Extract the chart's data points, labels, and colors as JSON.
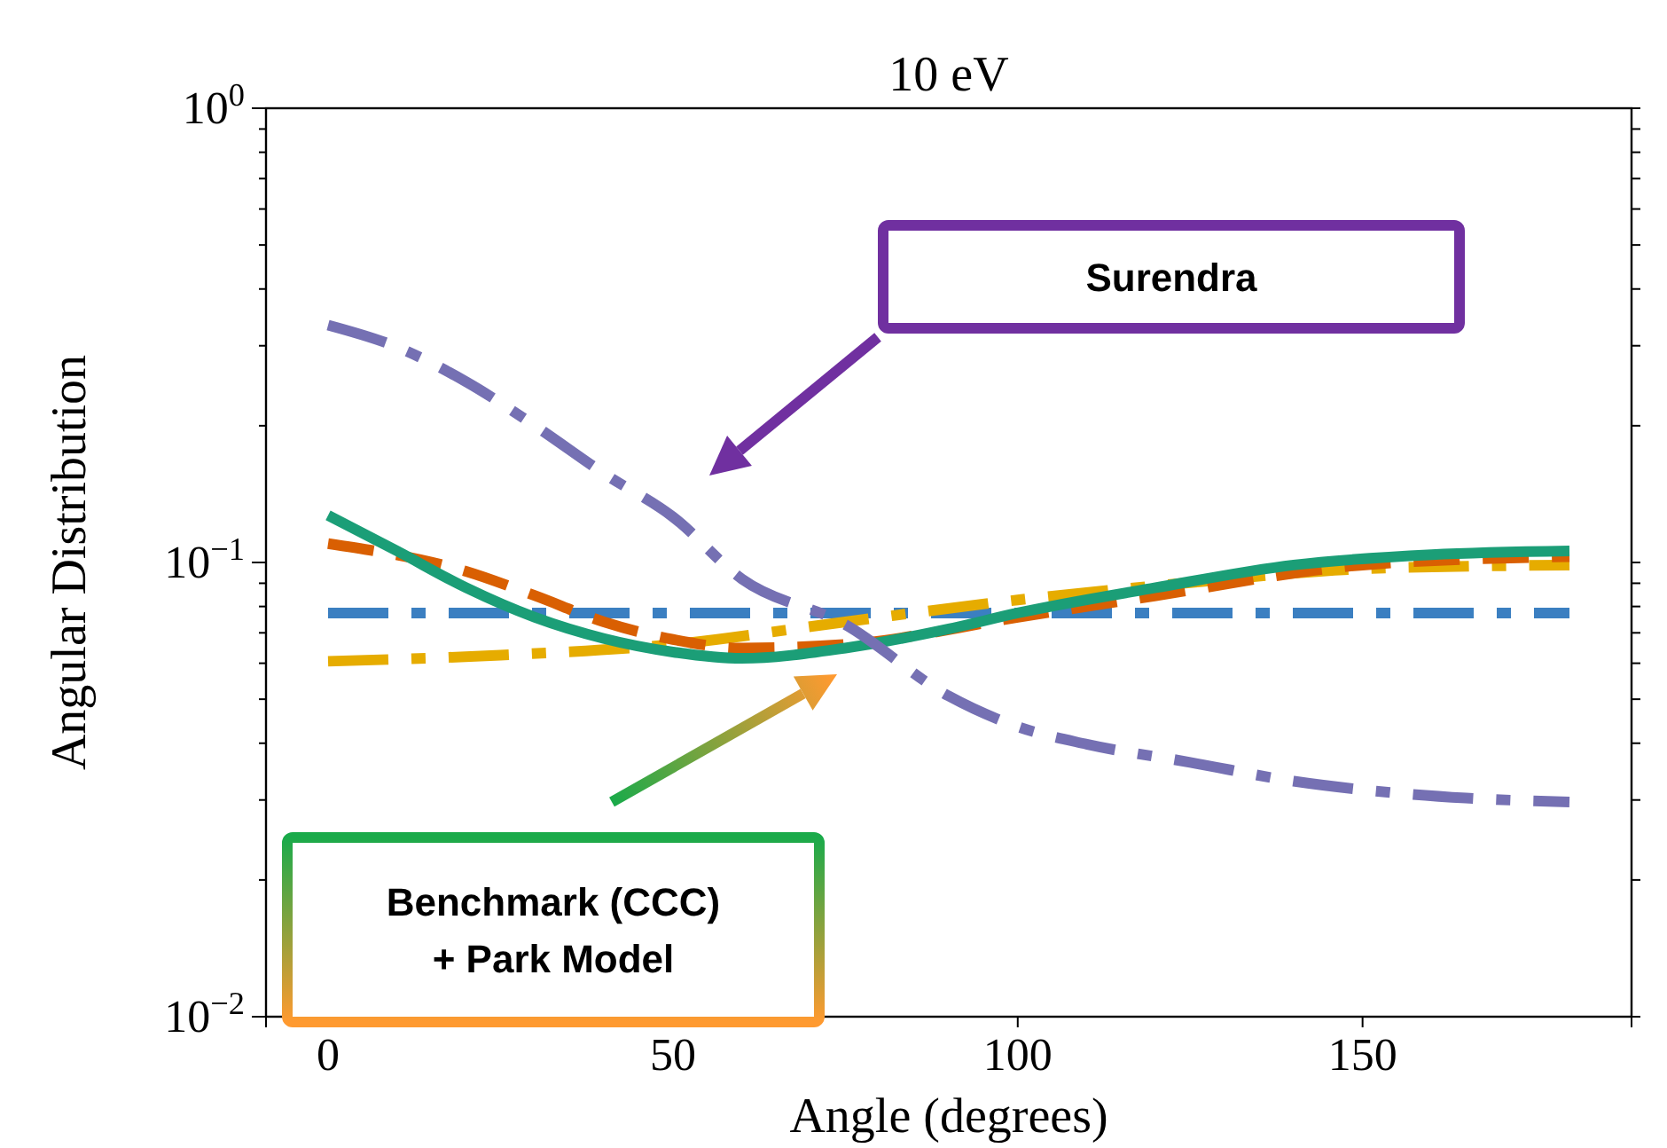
{
  "chart_data": {
    "type": "line",
    "title": "10 eV",
    "xlabel": "Angle (degrees)",
    "ylabel": "Angular Distribution",
    "log": "y",
    "grid": false,
    "xlim": [
      -9,
      189
    ],
    "xticks": [
      0,
      50,
      100,
      150
    ],
    "ylim": [
      0.01,
      1
    ],
    "yticks": [
      {
        "value": 0.01,
        "label": "10$^{−2}$"
      },
      {
        "value": 0.02,
        "label": null
      },
      {
        "value": 0.03,
        "label": null
      },
      {
        "value": 0.04,
        "label": null
      },
      {
        "value": 0.05,
        "label": null
      },
      {
        "value": 0.06,
        "label": null
      },
      {
        "value": 0.07,
        "label": null
      },
      {
        "value": 0.08,
        "label": null
      },
      {
        "value": 0.09,
        "label": null
      },
      {
        "value": 0.1,
        "label": "10$^{−1}$"
      },
      {
        "value": 0.2,
        "label": null
      },
      {
        "value": 0.3,
        "label": null
      },
      {
        "value": 0.4,
        "label": null
      },
      {
        "value": 0.5,
        "label": null
      },
      {
        "value": 0.6,
        "label": null
      },
      {
        "value": 0.7,
        "label": null
      },
      {
        "value": 0.8,
        "label": null
      },
      {
        "value": 0.9,
        "label": null
      },
      {
        "value": 1,
        "label": "10$^{0}$"
      }
    ],
    "series": [
      {
        "color": "#3b7fc1",
        "line_style": "dashdot",
        "x": [
          0,
          180
        ],
        "values": [
          0.0774,
          0.0774
        ]
      },
      {
        "color": "#e6ac00",
        "line_style": "dashdot",
        "x": [
          0,
          25,
          50,
          75,
          100,
          125,
          150,
          180
        ],
        "values": [
          0.0606,
          0.0625,
          0.066,
          0.074,
          0.0827,
          0.0903,
          0.0968,
          0.0987
        ]
      },
      {
        "color": "#d95f02",
        "line_style": "dashed",
        "x": [
          0,
          20,
          30,
          40,
          50,
          60,
          75,
          100,
          120,
          150,
          180
        ],
        "values": [
          0.11,
          0.0956,
          0.0845,
          0.074,
          0.0677,
          0.0648,
          0.066,
          0.0757,
          0.0845,
          0.0987,
          0.103
        ]
      },
      {
        "color": "#1b9e77",
        "line_style": "solid",
        "x": [
          0,
          10,
          20,
          30,
          40,
          50,
          60,
          75,
          90,
          100,
          120,
          140,
          160,
          180
        ],
        "values": [
          0.127,
          0.106,
          0.088,
          0.0757,
          0.068,
          0.0635,
          0.0615,
          0.0648,
          0.0714,
          0.0774,
          0.088,
          0.0987,
          0.104,
          0.106
        ]
      },
      {
        "color": "#7570b3",
        "line_style": "dashdot",
        "x": [
          0,
          10,
          20,
          30,
          40,
          50,
          60,
          75,
          90,
          100,
          110,
          125,
          140,
          150,
          165,
          180
        ],
        "values": [
          0.333,
          0.298,
          0.25,
          0.2,
          0.157,
          0.126,
          0.092,
          0.073,
          0.0508,
          0.0435,
          0.0398,
          0.0363,
          0.033,
          0.0316,
          0.0303,
          0.0297
        ]
      }
    ],
    "annotations": [
      "Surendra",
      "Benchmark (CCC)\n+ Park Model"
    ]
  }
}
